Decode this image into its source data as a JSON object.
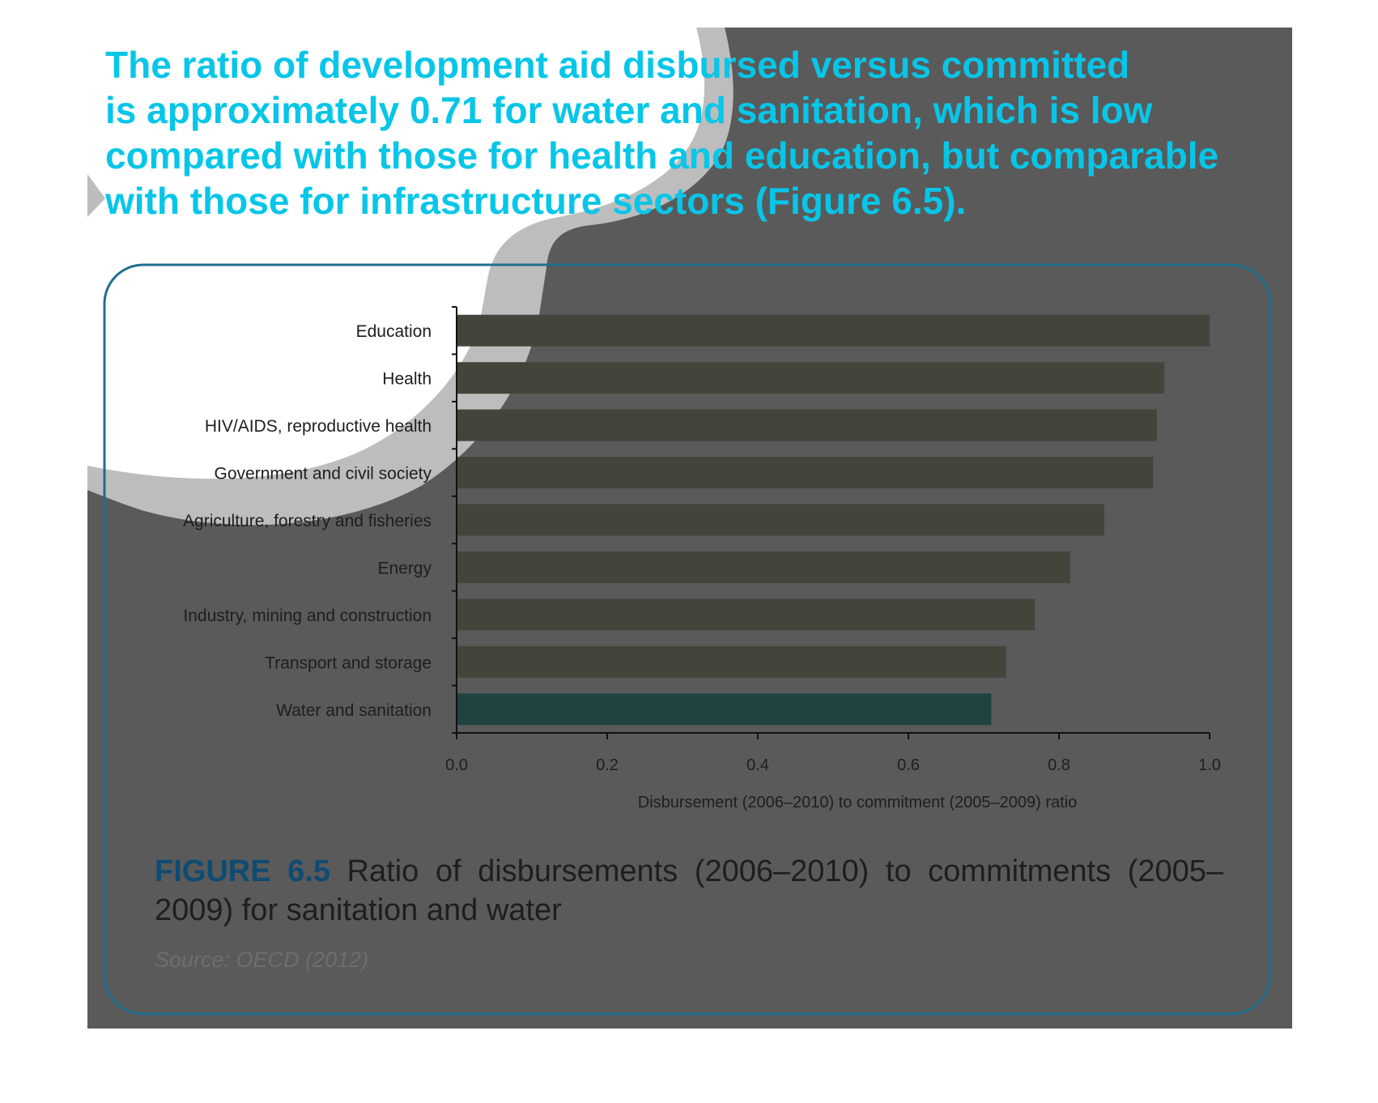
{
  "headline": {
    "lines": [
      "The ratio of development aid disbursed versus committed",
      "is approximately 0.71 for water and sanitation, which is low",
      "compared with those for health and education, but comparable",
      "with those for infrastructure sectors (Figure 6.5)."
    ]
  },
  "figure": {
    "number": "FIGURE 6.5",
    "caption": " Ratio of disbursements (2006–2010) to commitments (2005–2009) for sanitation and water",
    "source": "Source: OECD (2012)"
  },
  "colors": {
    "headline": "#07c6e8",
    "figure_number": "#0f4b73",
    "panel_border": "#1f6f8f",
    "bar_default": "#45443a",
    "bar_highlight": "#1e4341",
    "dark_overlay": "#5a5a5a",
    "light_shape": "#bdbdbd"
  },
  "chart_data": {
    "type": "bar",
    "orientation": "horizontal",
    "categories": [
      "Education",
      "Health",
      "HIV/AIDS, reproductive health",
      "Government and civil society",
      "Agriculture, forestry and fisheries",
      "Energy",
      "Industry, mining and construction",
      "Transport and storage",
      "Water and sanitation"
    ],
    "values": [
      1.0,
      0.94,
      0.93,
      0.925,
      0.86,
      0.815,
      0.768,
      0.73,
      0.71
    ],
    "highlight_category": "Water and sanitation",
    "xlabel": "Disbursement (2006–2010) to commitment (2005–2009) ratio",
    "ylabel": "",
    "xlim": [
      0,
      1.0
    ],
    "xticks": [
      "0.0",
      "0.2",
      "0.4",
      "0.6",
      "0.8",
      "1.0"
    ],
    "grid": false,
    "legend": "none"
  }
}
